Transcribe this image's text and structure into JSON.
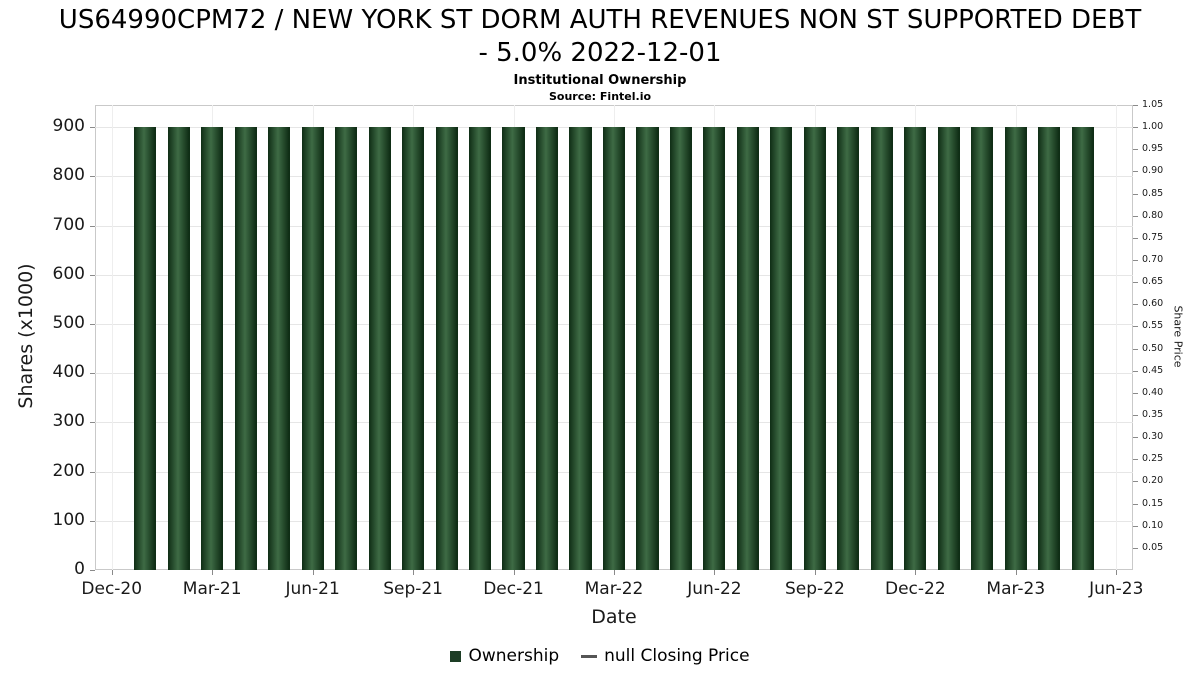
{
  "header": {
    "title_line1": "US64990CPM72 / NEW YORK ST DORM AUTH REVENUES NON ST SUPPORTED DEBT",
    "title_line2": "- 5.0% 2022-12-01",
    "subtitle": "Institutional Ownership",
    "source": "Source: Fintel.io"
  },
  "legend": {
    "items": [
      {
        "label": "Ownership",
        "marker": "square",
        "color": "#1d3d25"
      },
      {
        "label": "null Closing Price",
        "marker": "dash",
        "color": "#555555"
      }
    ]
  },
  "chart_data": {
    "type": "bar",
    "title": "US64990CPM72 / NEW YORK ST DORM AUTH REVENUES NON ST SUPPORTED DEBT - 5.0% 2022-12-01",
    "subtitle": "Institutional Ownership",
    "xlabel": "Date",
    "ylabel_left": "Shares (x1000)",
    "ylabel_right": "Share Price",
    "x_ticks": [
      "Dec-20",
      "Mar-21",
      "Jun-21",
      "Sep-21",
      "Dec-21",
      "Mar-22",
      "Jun-22",
      "Sep-22",
      "Dec-22",
      "Mar-23",
      "Jun-23"
    ],
    "x_slots_total": 31,
    "bar_start_slot": 1,
    "categories": [
      "Jan-21",
      "Feb-21",
      "Mar-21",
      "Apr-21",
      "May-21",
      "Jun-21",
      "Jul-21",
      "Aug-21",
      "Sep-21",
      "Oct-21",
      "Nov-21",
      "Dec-21",
      "Jan-22",
      "Feb-22",
      "Mar-22",
      "Apr-22",
      "May-22",
      "Jun-22",
      "Jul-22",
      "Aug-22",
      "Sep-22",
      "Oct-22",
      "Nov-22",
      "Dec-22",
      "Jan-23",
      "Feb-23",
      "Mar-23",
      "Apr-23",
      "May-23"
    ],
    "values": [
      900,
      900,
      900,
      900,
      900,
      900,
      900,
      900,
      900,
      900,
      900,
      900,
      900,
      900,
      900,
      900,
      900,
      900,
      900,
      900,
      900,
      900,
      900,
      900,
      900,
      900,
      900,
      900,
      900
    ],
    "series_name": "Ownership",
    "ylim_left": [
      0,
      945
    ],
    "yticks_left": [
      0,
      100,
      200,
      300,
      400,
      500,
      600,
      700,
      800,
      900
    ],
    "ylim_right": [
      0,
      1.05
    ],
    "yticks_right": [
      0.05,
      0.1,
      0.15,
      0.2,
      0.25,
      0.3,
      0.35,
      0.4,
      0.45,
      0.5,
      0.55,
      0.6,
      0.65,
      0.7,
      0.75,
      0.8,
      0.85,
      0.9,
      0.95,
      1.0,
      1.05
    ],
    "grid": true,
    "legend_position": "bottom",
    "bar_gradient": [
      "#0f2d15",
      "#3e6b45"
    ]
  }
}
